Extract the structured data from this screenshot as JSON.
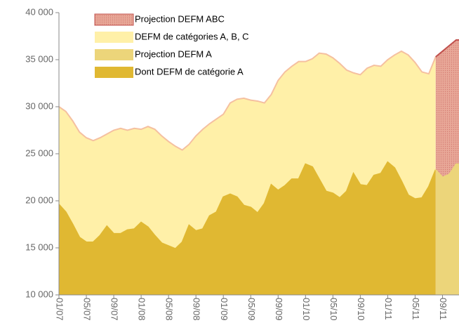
{
  "chart_data": {
    "type": "area",
    "categories": [
      "01/07",
      null,
      null,
      null,
      "05/07",
      null,
      null,
      null,
      "09/07",
      null,
      null,
      null,
      "01/08",
      null,
      null,
      null,
      "05/08",
      null,
      null,
      null,
      "09/08",
      null,
      null,
      null,
      "01/09",
      null,
      null,
      null,
      "05/09",
      null,
      null,
      null,
      "09/09",
      null,
      null,
      null,
      "01/10",
      null,
      null,
      null,
      "05/10",
      null,
      null,
      null,
      "09/10",
      null,
      null,
      null,
      "01/11",
      null,
      null,
      null,
      "05/11",
      null,
      null,
      null,
      "09/11",
      null,
      null
    ],
    "series": [
      {
        "name": "Projection DEFM ABC",
        "color": "#e8a898",
        "line_color": "#c0504d",
        "values": [
          null,
          null,
          null,
          null,
          null,
          null,
          null,
          null,
          null,
          null,
          null,
          null,
          null,
          null,
          null,
          null,
          null,
          null,
          null,
          null,
          null,
          null,
          null,
          null,
          null,
          null,
          null,
          null,
          null,
          null,
          null,
          null,
          null,
          null,
          null,
          null,
          null,
          null,
          null,
          null,
          null,
          null,
          null,
          null,
          null,
          null,
          null,
          null,
          null,
          null,
          null,
          null,
          null,
          null,
          null,
          35300,
          35900,
          36500,
          37100
        ]
      },
      {
        "name": "DEFM de catégories A, B, C",
        "color": "#fff0a8",
        "line_color": "#f5c0a0",
        "values": [
          30000,
          29500,
          28500,
          27300,
          26700,
          26400,
          26700,
          27100,
          27500,
          27700,
          27500,
          27700,
          27600,
          27900,
          27600,
          26900,
          26300,
          25800,
          25400,
          26000,
          26900,
          27600,
          28200,
          28700,
          29200,
          30400,
          30800,
          30900,
          30700,
          30600,
          30400,
          31300,
          32800,
          33700,
          34300,
          34800,
          34800,
          35100,
          35700,
          35600,
          35200,
          34600,
          33900,
          33600,
          33400,
          34100,
          34400,
          34300,
          35000,
          35500,
          35900,
          35500,
          34700,
          33700,
          33500,
          35300,
          null,
          null,
          null
        ]
      },
      {
        "name": "Projection DEFM A",
        "color": "#ecd57a",
        "line_color": "#ecd57a",
        "values": [
          null,
          null,
          null,
          null,
          null,
          null,
          null,
          null,
          null,
          null,
          null,
          null,
          null,
          null,
          null,
          null,
          null,
          null,
          null,
          null,
          null,
          null,
          null,
          null,
          null,
          null,
          null,
          null,
          null,
          null,
          null,
          null,
          null,
          null,
          null,
          null,
          null,
          null,
          null,
          null,
          null,
          null,
          null,
          null,
          null,
          null,
          null,
          null,
          null,
          null,
          null,
          null,
          null,
          null,
          null,
          23300,
          22500,
          22800,
          23900
        ]
      },
      {
        "name": "Dont DEFM de catégorie A",
        "color": "#e0b832",
        "line_color": "#e0b832",
        "values": [
          19600,
          18800,
          17500,
          16100,
          15600,
          15600,
          16300,
          17300,
          16500,
          16500,
          16900,
          17000,
          17700,
          17200,
          16300,
          15500,
          15200,
          14900,
          15600,
          17400,
          16800,
          17000,
          18400,
          18800,
          20400,
          20700,
          20400,
          19500,
          19300,
          18700,
          19700,
          21700,
          21100,
          21600,
          22300,
          22300,
          23900,
          23600,
          22300,
          21000,
          20800,
          20300,
          21000,
          22900,
          21700,
          21600,
          22700,
          22900,
          24100,
          23500,
          22100,
          20600,
          20200,
          20300,
          21500,
          23300,
          null,
          null,
          null
        ]
      }
    ],
    "ylim": [
      10000,
      40000
    ],
    "yticks": [
      {
        "value": 10000,
        "label": "10 000"
      },
      {
        "value": 15000,
        "label": "15 000"
      },
      {
        "value": 20000,
        "label": "20 000"
      },
      {
        "value": 25000,
        "label": "25 000"
      },
      {
        "value": 30000,
        "label": "30 000"
      },
      {
        "value": 35000,
        "label": "35 000"
      },
      {
        "value": 40000,
        "label": "40 000"
      }
    ],
    "grid": false
  }
}
